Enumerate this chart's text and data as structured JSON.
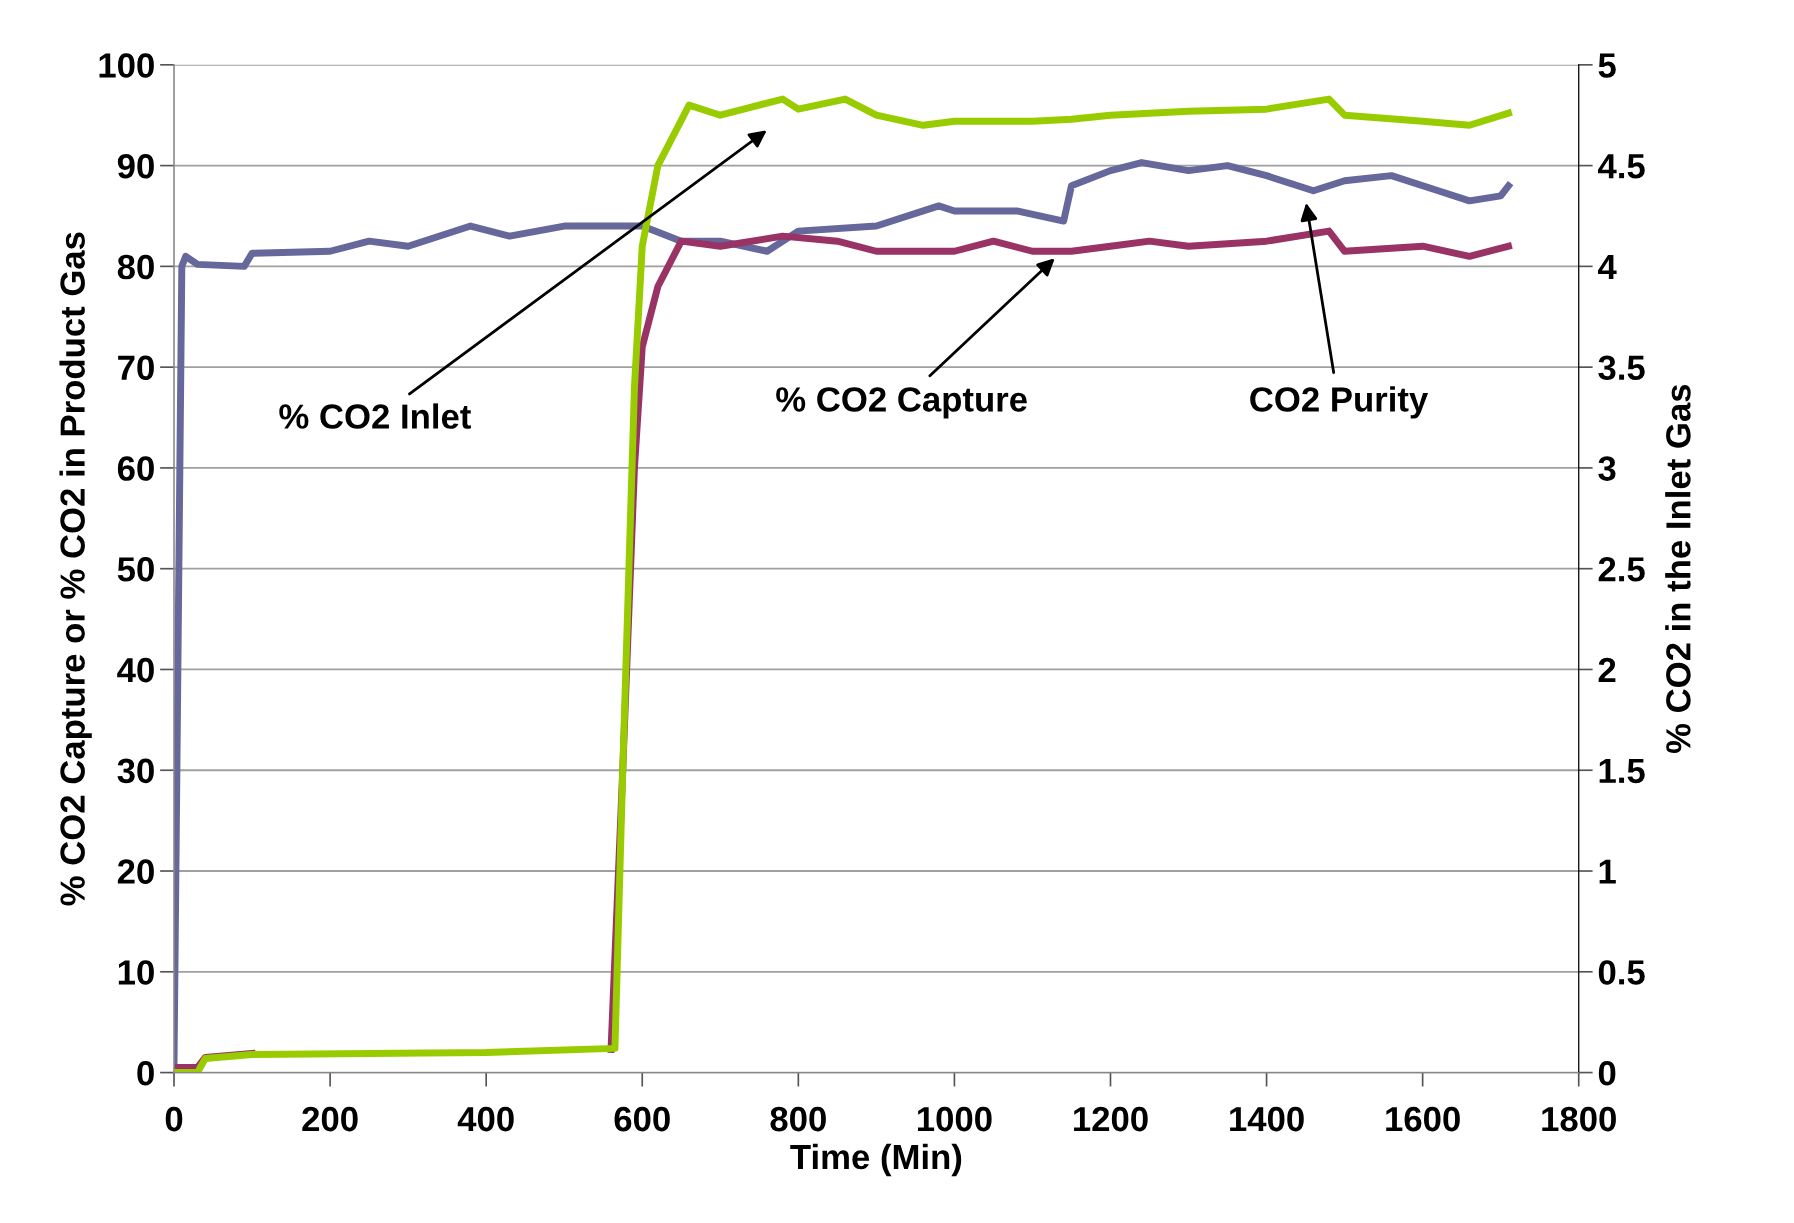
{
  "chart_data": {
    "type": "line",
    "xlabel": "Time (Min)",
    "ylabel": "% CO2 Capture or % CO2 in Product Gas",
    "y2label": "% CO2 in the Inlet Gas",
    "xlim": [
      0,
      1800
    ],
    "xticks": [
      0,
      200,
      400,
      600,
      800,
      1000,
      1200,
      1400,
      1600,
      1800
    ],
    "ylim": [
      0,
      100
    ],
    "yticks": [
      0,
      10,
      20,
      30,
      40,
      50,
      60,
      70,
      80,
      90,
      100
    ],
    "y2lim": [
      0,
      5
    ],
    "y2ticks": [
      0,
      0.5,
      1,
      1.5,
      2,
      2.5,
      3,
      3.5,
      4,
      4.5,
      5
    ],
    "grid": "y",
    "legend": false,
    "marker": "none",
    "line_style": "solid",
    "series": [
      {
        "color": "#66679a",
        "x": [
          0,
          10,
          15,
          30,
          90,
          100,
          200,
          250,
          300,
          380,
          430,
          500,
          600,
          650,
          700,
          760,
          800,
          900,
          980,
          1000,
          1080,
          1140,
          1150,
          1200,
          1240,
          1300,
          1350,
          1400,
          1460,
          1500,
          1560,
          1620,
          1660,
          1700,
          1710
        ],
        "values": [
          1,
          80,
          81,
          80.2,
          80,
          81.3,
          81.5,
          82.5,
          82,
          84,
          83,
          84,
          84,
          82.5,
          82.5,
          81.5,
          83.5,
          84,
          86,
          85.5,
          85.5,
          84.5,
          88,
          89.5,
          90.3,
          89.5,
          90,
          89,
          87.5,
          88.5,
          89,
          87.5,
          86.5,
          87,
          88
        ]
      },
      {
        "color": "#993366",
        "x": [
          0,
          30,
          40,
          100,
          400,
          560,
          575,
          590,
          600,
          620,
          650,
          700,
          780,
          850,
          900,
          1000,
          1050,
          1100,
          1150,
          1200,
          1250,
          1300,
          1400,
          1480,
          1500,
          1600,
          1660,
          1710
        ],
        "values": [
          0.5,
          0.5,
          1.5,
          1.9,
          null,
          2.3,
          30,
          60,
          72,
          78,
          82.5,
          82,
          83,
          82.5,
          81.5,
          81.5,
          82.5,
          81.5,
          81.5,
          82,
          82.5,
          82,
          82.5,
          83.5,
          81.5,
          82,
          81,
          82
        ]
      },
      {
        "color": "#99cc00",
        "axis": "y2",
        "x": [
          0,
          30,
          40,
          100,
          400,
          565,
          575,
          590,
          600,
          620,
          660,
          700,
          780,
          800,
          860,
          900,
          960,
          1000,
          1100,
          1150,
          1200,
          1300,
          1400,
          1480,
          1500,
          1600,
          1660,
          1710
        ],
        "values": [
          0,
          0,
          0.07,
          0.09,
          0.1,
          0.12,
          1.5,
          3.4,
          4.1,
          4.5,
          4.8,
          4.75,
          4.83,
          4.78,
          4.83,
          4.75,
          4.7,
          4.72,
          4.72,
          4.73,
          4.75,
          4.77,
          4.78,
          4.83,
          4.75,
          4.72,
          4.7,
          4.76
        ]
      }
    ],
    "annotations": [
      "% CO2 Inlet",
      "% CO2 Capture",
      "CO2 Purity"
    ]
  }
}
